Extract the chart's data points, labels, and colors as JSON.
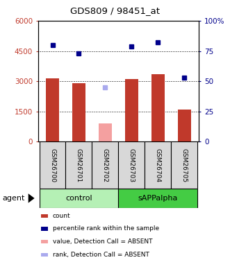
{
  "title": "GDS809 / 98451_at",
  "samples": [
    "GSM26700",
    "GSM26701",
    "GSM26702",
    "GSM26703",
    "GSM26704",
    "GSM26705"
  ],
  "bar_values": [
    3150,
    2920,
    null,
    3100,
    3350,
    1600
  ],
  "bar_color_present": "#c0392b",
  "bar_color_absent": "#f4a0a0",
  "percentile_values": [
    80,
    73,
    null,
    79,
    82,
    53
  ],
  "percentile_color_present": "#00008b",
  "percentile_color_absent": "#aaaaee",
  "absent_bar_value": 900,
  "absent_percentile_value": 45,
  "absent_index": 2,
  "ylim_left": [
    0,
    6000
  ],
  "ylim_right": [
    0,
    100
  ],
  "yticks_left": [
    0,
    1500,
    3000,
    4500,
    6000
  ],
  "yticks_right": [
    0,
    25,
    50,
    75,
    100
  ],
  "ytick_labels_left": [
    "0",
    "1500",
    "3000",
    "4500",
    "6000"
  ],
  "ytick_labels_right": [
    "0",
    "25",
    "50",
    "75",
    "100%"
  ],
  "control_color": "#b5f0b5",
  "sapp_color": "#44cc44",
  "sample_box_color": "#d8d8d8",
  "bar_width": 0.5,
  "legend_items": [
    {
      "label": "count",
      "color": "#c0392b"
    },
    {
      "label": "percentile rank within the sample",
      "color": "#00008b"
    },
    {
      "label": "value, Detection Call = ABSENT",
      "color": "#f4a0a0"
    },
    {
      "label": "rank, Detection Call = ABSENT",
      "color": "#aaaaee"
    }
  ]
}
